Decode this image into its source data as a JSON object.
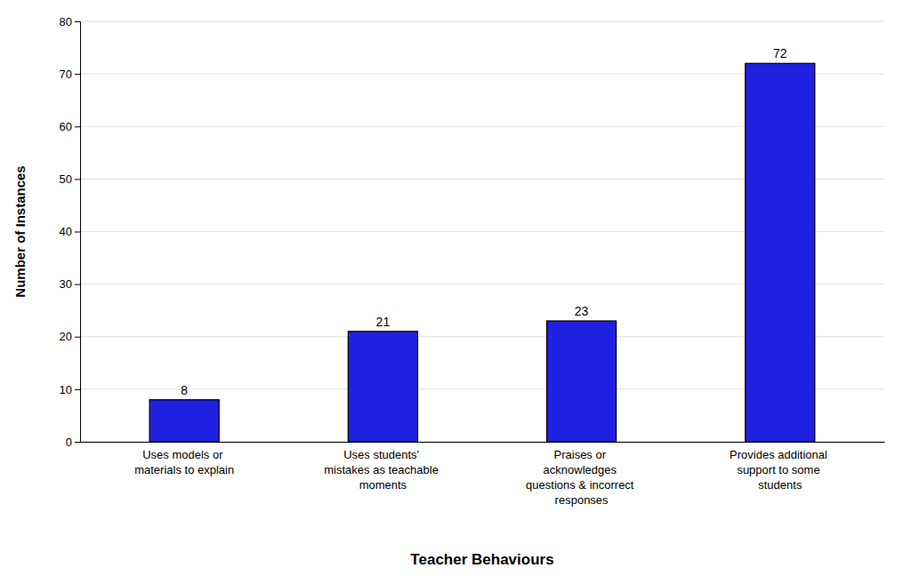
{
  "chart_data": {
    "type": "bar",
    "categories": [
      "Uses models or\nmaterials to explain",
      "Uses students'\nmistakes as teachable\nmoments",
      "Praises or\nacknowledges\nquestions & incorrect\nresponses",
      "Provides additional\nsupport to some\nstudents"
    ],
    "values": [
      8,
      21,
      23,
      72
    ],
    "color": "#2020e0",
    "xlabel": "Teacher Behaviours",
    "ylabel": "Number of Instances",
    "ylim": [
      0,
      80
    ],
    "yticks": [
      0,
      10,
      20,
      30,
      40,
      50,
      60,
      70,
      80
    ],
    "grid": true,
    "data_labels": true
  }
}
